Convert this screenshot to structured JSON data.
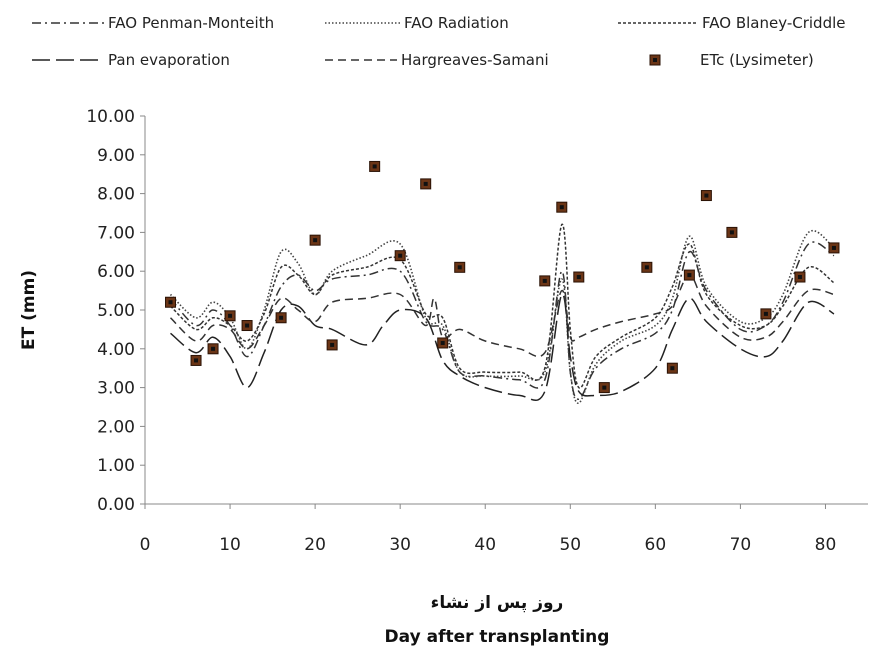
{
  "chart_data": {
    "type": "line",
    "ylabel": "ET (mm)",
    "xlabel": "Day after transplanting",
    "xlabel_fa": "روز پس از نشاء",
    "xlim": [
      0,
      85
    ],
    "ylim": [
      0,
      10
    ],
    "x_ticks": [
      "0",
      "10",
      "20",
      "30",
      "40",
      "50",
      "60",
      "70",
      "80"
    ],
    "y_ticks": [
      "0.00",
      "1.00",
      "2.00",
      "3.00",
      "4.00",
      "5.00",
      "6.00",
      "7.00",
      "8.00",
      "9.00",
      "10.00"
    ],
    "grid": false,
    "legend_position": "top",
    "series": [
      {
        "name": "FAO Penman-Monteith",
        "style": "dash-dot",
        "color": "#333333",
        "points": [
          [
            3,
            5.3
          ],
          [
            6,
            4.6
          ],
          [
            8,
            5.0
          ],
          [
            10,
            4.6
          ],
          [
            12,
            3.8
          ],
          [
            14,
            4.6
          ],
          [
            16,
            5.6
          ],
          [
            18,
            5.9
          ],
          [
            20,
            5.5
          ],
          [
            22,
            5.8
          ],
          [
            26,
            5.9
          ],
          [
            30,
            6.0
          ],
          [
            33,
            4.7
          ],
          [
            35,
            4.5
          ],
          [
            37,
            3.4
          ],
          [
            40,
            3.3
          ],
          [
            44,
            3.2
          ],
          [
            47,
            3.2
          ],
          [
            49,
            6.0
          ],
          [
            50,
            3.4
          ],
          [
            51,
            2.7
          ],
          [
            53,
            3.5
          ],
          [
            56,
            4.0
          ],
          [
            60,
            4.4
          ],
          [
            62,
            5.0
          ],
          [
            64,
            6.5
          ],
          [
            66,
            5.5
          ],
          [
            70,
            4.5
          ],
          [
            73,
            4.6
          ],
          [
            75,
            5.2
          ],
          [
            78,
            6.7
          ],
          [
            81,
            6.4
          ]
        ]
      },
      {
        "name": "FAO Radiation",
        "style": "dotted",
        "color": "#444444",
        "points": [
          [
            3,
            5.4
          ],
          [
            6,
            4.8
          ],
          [
            8,
            5.2
          ],
          [
            10,
            4.8
          ],
          [
            12,
            4.0
          ],
          [
            14,
            5.0
          ],
          [
            16,
            6.5
          ],
          [
            18,
            6.2
          ],
          [
            20,
            5.4
          ],
          [
            22,
            6.0
          ],
          [
            26,
            6.4
          ],
          [
            30,
            6.7
          ],
          [
            33,
            4.8
          ],
          [
            35,
            4.6
          ],
          [
            37,
            3.4
          ],
          [
            40,
            3.3
          ],
          [
            44,
            3.3
          ],
          [
            47,
            3.4
          ],
          [
            49,
            5.8
          ],
          [
            50,
            3.4
          ],
          [
            51,
            2.6
          ],
          [
            53,
            3.6
          ],
          [
            56,
            4.2
          ],
          [
            60,
            4.6
          ],
          [
            62,
            5.3
          ],
          [
            64,
            6.9
          ],
          [
            66,
            5.6
          ],
          [
            70,
            4.7
          ],
          [
            73,
            4.8
          ],
          [
            75,
            5.4
          ],
          [
            78,
            7.0
          ],
          [
            81,
            6.6
          ]
        ]
      },
      {
        "name": "FAO Blaney-Criddle",
        "style": "short-dash",
        "color": "#333333",
        "points": [
          [
            3,
            5.1
          ],
          [
            6,
            4.5
          ],
          [
            8,
            4.8
          ],
          [
            10,
            4.6
          ],
          [
            12,
            4.2
          ],
          [
            14,
            4.9
          ],
          [
            16,
            6.1
          ],
          [
            18,
            5.9
          ],
          [
            20,
            5.4
          ],
          [
            22,
            5.9
          ],
          [
            26,
            6.1
          ],
          [
            30,
            6.3
          ],
          [
            33,
            4.9
          ],
          [
            35,
            4.8
          ],
          [
            37,
            3.5
          ],
          [
            40,
            3.4
          ],
          [
            44,
            3.4
          ],
          [
            47,
            3.5
          ],
          [
            49,
            7.2
          ],
          [
            50,
            4.5
          ],
          [
            51,
            3.0
          ],
          [
            53,
            3.8
          ],
          [
            56,
            4.3
          ],
          [
            60,
            4.8
          ],
          [
            62,
            5.6
          ],
          [
            64,
            6.7
          ],
          [
            66,
            5.4
          ],
          [
            70,
            4.6
          ],
          [
            73,
            4.6
          ],
          [
            75,
            5.1
          ],
          [
            78,
            6.1
          ],
          [
            81,
            5.7
          ]
        ]
      },
      {
        "name": "Pan evaporation",
        "style": "long-dash",
        "color": "#222222",
        "points": [
          [
            3,
            4.4
          ],
          [
            6,
            3.9
          ],
          [
            8,
            4.3
          ],
          [
            10,
            3.8
          ],
          [
            12,
            3.0
          ],
          [
            14,
            3.9
          ],
          [
            16,
            5.0
          ],
          [
            18,
            5.1
          ],
          [
            20,
            4.6
          ],
          [
            22,
            4.5
          ],
          [
            26,
            4.1
          ],
          [
            28,
            4.6
          ],
          [
            30,
            5.0
          ],
          [
            33,
            4.8
          ],
          [
            35,
            3.7
          ],
          [
            37,
            3.3
          ],
          [
            40,
            3.0
          ],
          [
            44,
            2.8
          ],
          [
            47,
            2.9
          ],
          [
            49,
            5.4
          ],
          [
            50,
            3.8
          ],
          [
            51,
            2.9
          ],
          [
            53,
            2.8
          ],
          [
            56,
            2.9
          ],
          [
            60,
            3.5
          ],
          [
            62,
            4.5
          ],
          [
            64,
            5.3
          ],
          [
            66,
            4.7
          ],
          [
            70,
            4.0
          ],
          [
            73,
            3.8
          ],
          [
            75,
            4.2
          ],
          [
            78,
            5.2
          ],
          [
            81,
            4.9
          ]
        ]
      },
      {
        "name": "Hargreaves-Samani",
        "style": "dashed",
        "color": "#333333",
        "points": [
          [
            3,
            4.8
          ],
          [
            6,
            4.2
          ],
          [
            8,
            4.6
          ],
          [
            10,
            4.5
          ],
          [
            12,
            4.0
          ],
          [
            14,
            4.6
          ],
          [
            16,
            5.3
          ],
          [
            18,
            5.0
          ],
          [
            20,
            4.7
          ],
          [
            22,
            5.2
          ],
          [
            26,
            5.3
          ],
          [
            30,
            5.4
          ],
          [
            33,
            4.6
          ],
          [
            34,
            5.3
          ],
          [
            35,
            4.3
          ],
          [
            37,
            4.5
          ],
          [
            40,
            4.2
          ],
          [
            44,
            4.0
          ],
          [
            47,
            3.9
          ],
          [
            49,
            5.5
          ],
          [
            50,
            4.3
          ],
          [
            51,
            4.3
          ],
          [
            53,
            4.5
          ],
          [
            56,
            4.7
          ],
          [
            60,
            4.9
          ],
          [
            62,
            5.1
          ],
          [
            64,
            5.9
          ],
          [
            66,
            5.1
          ],
          [
            70,
            4.3
          ],
          [
            73,
            4.3
          ],
          [
            75,
            4.7
          ],
          [
            78,
            5.5
          ],
          [
            81,
            5.4
          ]
        ]
      }
    ],
    "scatter": {
      "name": "ETc (Lysimeter)",
      "color": "#6b3516",
      "points": [
        [
          3,
          5.2
        ],
        [
          6,
          3.7
        ],
        [
          8,
          4.0
        ],
        [
          10,
          4.85
        ],
        [
          12,
          4.6
        ],
        [
          16,
          4.8
        ],
        [
          20,
          6.8
        ],
        [
          22,
          4.1
        ],
        [
          27,
          8.7
        ],
        [
          30,
          6.4
        ],
        [
          33,
          8.25
        ],
        [
          35,
          4.15
        ],
        [
          37,
          6.1
        ],
        [
          47,
          5.75
        ],
        [
          49,
          7.65
        ],
        [
          51,
          5.85
        ],
        [
          54,
          3.0
        ],
        [
          59,
          6.1
        ],
        [
          62,
          3.5
        ],
        [
          64,
          5.9
        ],
        [
          66,
          7.95
        ],
        [
          69,
          7.0
        ],
        [
          73,
          4.9
        ],
        [
          77,
          5.85
        ],
        [
          81,
          6.6
        ]
      ]
    }
  }
}
